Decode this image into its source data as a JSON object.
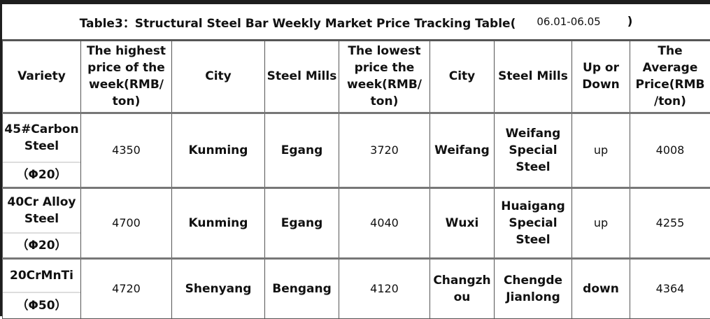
{
  "title": {
    "text": "Table3：Structural Steel Bar Weekly Market Price Tracking Table(",
    "date_range": "06.01-06.05",
    "close": ")"
  },
  "headers": [
    "Variety",
    "The highest price of the week(RMB/ ton)",
    "City",
    "Steel Mills",
    "The lowest price the week(RMB/ ton)",
    "City",
    "Steel Mills",
    "Up or Down",
    "The Average Price(RMB /ton)"
  ],
  "rows": [
    {
      "variety": "45#Carbon Steel",
      "spec": "（Φ20）",
      "highest": "4350",
      "high_city": "Kunming",
      "high_mill": "Egang",
      "lowest": "3720",
      "low_city": "Weifang",
      "low_mill": "Weifang Special Steel",
      "trend": "up",
      "average": "4008"
    },
    {
      "variety": "40Cr Alloy Steel",
      "spec": "（Φ20）",
      "highest": "4700",
      "high_city": "Kunming",
      "high_mill": "Egang",
      "lowest": "4040",
      "low_city": "Wuxi",
      "low_mill": "Huaigang Special Steel",
      "trend": "up",
      "average": "4255"
    },
    {
      "variety": "20CrMnTi",
      "spec": "（Φ50）",
      "highest": "4720",
      "high_city": "Shenyang",
      "high_mill": "Bengang",
      "lowest": "4120",
      "low_city": "Changzhou",
      "low_mill": "Chengde Jianlong",
      "trend": "down",
      "average": "4364"
    }
  ]
}
